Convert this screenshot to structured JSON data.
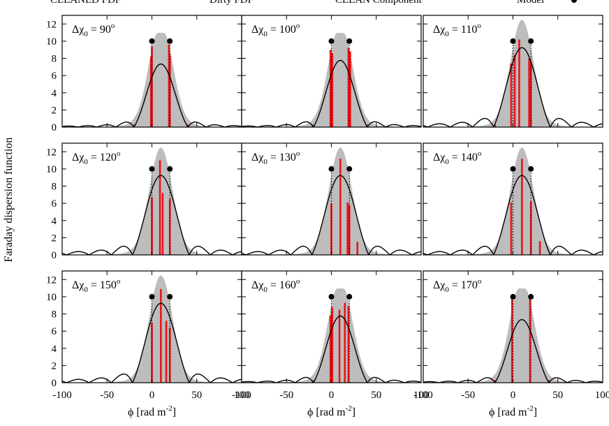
{
  "legend": [
    {
      "label": "CLEANED FDF",
      "style": "black-line"
    },
    {
      "label": "Dirty FDF",
      "style": "gray-fill"
    },
    {
      "label": "CLEAN Component",
      "style": "red-bar"
    },
    {
      "label": "Model",
      "style": "dots"
    }
  ],
  "ylabel": "Faraday dispersion function",
  "xlabel_main": "ϕ [rad m",
  "xlabel_sup": "-2",
  "xlabel_end": "]",
  "colors": {
    "dirty": "#bdbdbd",
    "cleaned": "#000000",
    "clean_component": "#e8141a",
    "model": "#000000"
  },
  "chart_data": [
    {
      "type": "line",
      "label_base": "Δχ",
      "label_sub": "0",
      "label_value": " = 90",
      "label_sup": "o",
      "xlim": [
        -100,
        100
      ],
      "ylim": [
        0,
        13
      ],
      "xticks": [
        -100,
        -50,
        0,
        50,
        100
      ],
      "yticks": [
        0,
        2,
        4,
        6,
        8,
        10,
        12
      ],
      "model_points": [
        [
          0,
          10
        ],
        [
          20,
          10
        ]
      ],
      "clean_components": [
        [
          -1,
          8.2
        ],
        [
          0,
          9.4
        ],
        [
          19,
          9.6
        ],
        [
          20,
          8.4
        ],
        [
          -20,
          0.3
        ],
        [
          40,
          0.3
        ]
      ],
      "cleaned_shape": "double",
      "dirty_shape": "double"
    },
    {
      "type": "line",
      "label_base": "Δχ",
      "label_sub": "0",
      "label_value": " = 100",
      "label_sup": "o",
      "xlim": [
        -100,
        100
      ],
      "ylim": [
        0,
        13
      ],
      "xticks": [
        -100,
        -50,
        0,
        50,
        100
      ],
      "yticks": [
        0,
        2,
        4,
        6,
        8,
        10,
        12
      ],
      "model_points": [
        [
          0,
          10
        ],
        [
          20,
          10
        ]
      ],
      "clean_components": [
        [
          -1,
          9.0
        ],
        [
          1,
          8.6
        ],
        [
          19,
          9.2
        ],
        [
          21,
          8.8
        ],
        [
          -20,
          0.3
        ],
        [
          40,
          0.3
        ]
      ],
      "cleaned_shape": "flat",
      "dirty_shape": "double"
    },
    {
      "type": "line",
      "label_base": "Δχ",
      "label_sub": "0",
      "label_value": " = 110",
      "label_sup": "o",
      "xlim": [
        -100,
        100
      ],
      "ylim": [
        0,
        13
      ],
      "xticks": [
        -100,
        -50,
        0,
        50,
        100
      ],
      "yticks": [
        0,
        2,
        4,
        6,
        8,
        10,
        12
      ],
      "model_points": [
        [
          0,
          10
        ],
        [
          20,
          10
        ]
      ],
      "clean_components": [
        [
          -2,
          7.4
        ],
        [
          2,
          8.4
        ],
        [
          7,
          10.2
        ],
        [
          18,
          8.0
        ],
        [
          20,
          7.6
        ],
        [
          -20,
          0.3
        ]
      ],
      "cleaned_shape": "single",
      "dirty_shape": "single"
    },
    {
      "type": "line",
      "label_base": "Δχ",
      "label_sub": "0",
      "label_value": " = 120",
      "label_sup": "o",
      "xlim": [
        -100,
        100
      ],
      "ylim": [
        0,
        13
      ],
      "xticks": [
        -100,
        -50,
        0,
        50,
        100
      ],
      "yticks": [
        0,
        2,
        4,
        6,
        8,
        10,
        12
      ],
      "model_points": [
        [
          0,
          10
        ],
        [
          20,
          10
        ]
      ],
      "clean_components": [
        [
          0,
          6.7
        ],
        [
          9,
          11.0
        ],
        [
          12,
          7.2
        ],
        [
          20,
          6.5
        ]
      ],
      "cleaned_shape": "single",
      "dirty_shape": "single"
    },
    {
      "type": "line",
      "label_base": "Δχ",
      "label_sub": "0",
      "label_value": " = 130",
      "label_sup": "o",
      "xlim": [
        -100,
        100
      ],
      "ylim": [
        0,
        13
      ],
      "xticks": [
        -100,
        -50,
        0,
        50,
        100
      ],
      "yticks": [
        0,
        2,
        4,
        6,
        8,
        10,
        12
      ],
      "model_points": [
        [
          0,
          10
        ],
        [
          20,
          10
        ]
      ],
      "clean_components": [
        [
          0,
          6.0
        ],
        [
          10,
          11.2
        ],
        [
          18,
          6.1
        ],
        [
          20,
          5.8
        ],
        [
          29,
          1.5
        ]
      ],
      "cleaned_shape": "single",
      "dirty_shape": "single"
    },
    {
      "type": "line",
      "label_base": "Δχ",
      "label_sub": "0",
      "label_value": " = 140",
      "label_sup": "o",
      "xlim": [
        -100,
        100
      ],
      "ylim": [
        0,
        13
      ],
      "xticks": [
        -100,
        -50,
        0,
        50,
        100
      ],
      "yticks": [
        0,
        2,
        4,
        6,
        8,
        10,
        12
      ],
      "model_points": [
        [
          0,
          10
        ],
        [
          20,
          10
        ]
      ],
      "clean_components": [
        [
          -2,
          6.1
        ],
        [
          10,
          11.2
        ],
        [
          20,
          6.2
        ],
        [
          30,
          1.6
        ]
      ],
      "cleaned_shape": "single",
      "dirty_shape": "single"
    },
    {
      "type": "line",
      "label_base": "Δχ",
      "label_sub": "0",
      "label_value": " = 150",
      "label_sup": "o",
      "xlim": [
        -100,
        100
      ],
      "ylim": [
        0,
        13
      ],
      "xticks": [
        -100,
        -50,
        0,
        50,
        100
      ],
      "yticks": [
        0,
        2,
        4,
        6,
        8,
        10,
        12
      ],
      "model_points": [
        [
          0,
          10
        ],
        [
          20,
          10
        ]
      ],
      "clean_components": [
        [
          0,
          7.0
        ],
        [
          10,
          10.9
        ],
        [
          16,
          7.2
        ],
        [
          20,
          6.4
        ]
      ],
      "cleaned_shape": "single",
      "dirty_shape": "single"
    },
    {
      "type": "line",
      "label_base": "Δχ",
      "label_sub": "0",
      "label_value": " = 160",
      "label_sup": "o",
      "xlim": [
        -100,
        100
      ],
      "ylim": [
        0,
        13
      ],
      "xticks": [
        -100,
        -50,
        0,
        50,
        100
      ],
      "yticks": [
        0,
        2,
        4,
        6,
        8,
        10,
        12
      ],
      "model_points": [
        [
          0,
          10
        ],
        [
          20,
          10
        ]
      ],
      "clean_components": [
        [
          -1,
          7.8
        ],
        [
          1,
          8.8
        ],
        [
          9,
          8.5
        ],
        [
          15,
          9.3
        ],
        [
          19,
          8.9
        ],
        [
          -20,
          0.3
        ]
      ],
      "cleaned_shape": "flat",
      "dirty_shape": "double"
    },
    {
      "type": "line",
      "label_base": "Δχ",
      "label_sub": "0",
      "label_value": " = 170",
      "label_sup": "o",
      "xlim": [
        -100,
        100
      ],
      "ylim": [
        0,
        13
      ],
      "xticks": [
        -100,
        -50,
        0,
        50,
        100
      ],
      "yticks": [
        0,
        2,
        4,
        6,
        8,
        10,
        12
      ],
      "model_points": [
        [
          0,
          10
        ],
        [
          20,
          10
        ]
      ],
      "clean_components": [
        [
          -1,
          9.8
        ],
        [
          19,
          9.8
        ],
        [
          40,
          0.3
        ],
        [
          -20,
          0.3
        ]
      ],
      "cleaned_shape": "double",
      "dirty_shape": "double"
    }
  ]
}
